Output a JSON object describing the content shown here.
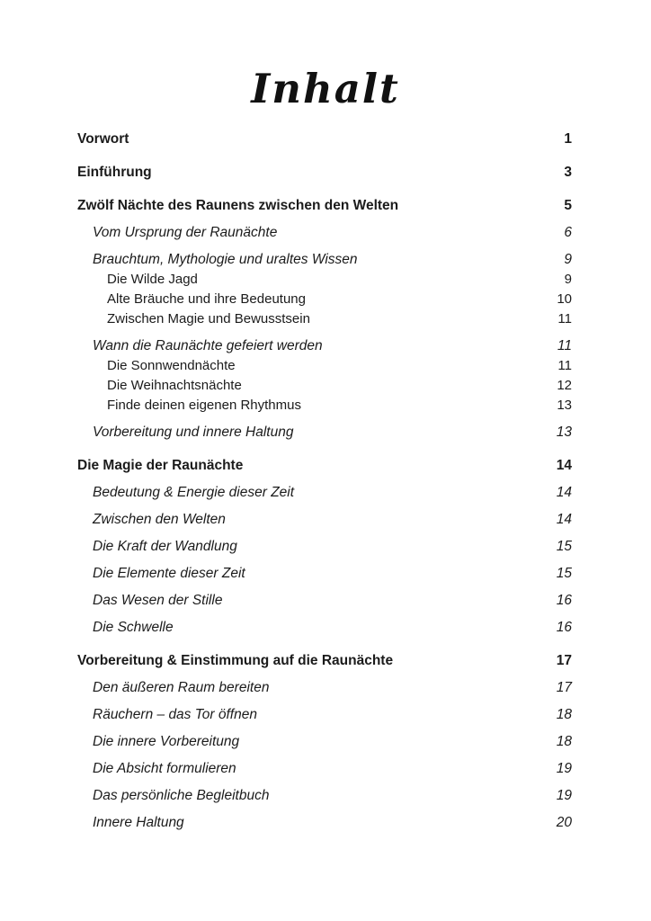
{
  "toc": {
    "title": "Inhalt",
    "entries": [
      {
        "label": "Vorwort",
        "page": "1",
        "level": 1
      },
      {
        "label": "Einführung",
        "page": "3",
        "level": 1
      },
      {
        "label": "Zwölf Nächte des Raunens zwischen den Welten",
        "page": "5",
        "level": 1
      },
      {
        "label": "Vom Ursprung der Raunächte",
        "page": "6",
        "level": 2
      },
      {
        "label": "Brauchtum, Mythologie und uraltes Wissen",
        "page": "9",
        "level": 2
      },
      {
        "label": "Die Wilde Jagd",
        "page": "9",
        "level": 3
      },
      {
        "label": "Alte Bräuche und ihre Bedeutung",
        "page": "10",
        "level": 3
      },
      {
        "label": "Zwischen Magie und Bewusstsein",
        "page": "11",
        "level": 3
      },
      {
        "label": "Wann die Raunächte gefeiert werden",
        "page": "11",
        "level": 2
      },
      {
        "label": "Die Sonnwendnächte",
        "page": "11",
        "level": 3
      },
      {
        "label": "Die Weihnachtsnächte",
        "page": "12",
        "level": 3
      },
      {
        "label": "Finde deinen eigenen Rhythmus",
        "page": "13",
        "level": 3
      },
      {
        "label": "Vorbereitung und innere Haltung",
        "page": "13",
        "level": 2
      },
      {
        "label": "Die Magie der Raunächte",
        "page": "14",
        "level": 1
      },
      {
        "label": "Bedeutung & Energie dieser Zeit",
        "page": "14",
        "level": 2
      },
      {
        "label": "Zwischen den Welten",
        "page": "14",
        "level": 2
      },
      {
        "label": "Die Kraft der Wandlung",
        "page": "15",
        "level": 2
      },
      {
        "label": "Die Elemente dieser Zeit",
        "page": "15",
        "level": 2
      },
      {
        "label": "Das Wesen der Stille",
        "page": "16",
        "level": 2
      },
      {
        "label": "Die Schwelle",
        "page": "16",
        "level": 2
      },
      {
        "label": "Vorbereitung & Einstimmung auf die Raunächte",
        "page": "17",
        "level": 1
      },
      {
        "label": "Den äußeren Raum bereiten",
        "page": "17",
        "level": 2
      },
      {
        "label": "Räuchern – das Tor öffnen",
        "page": "18",
        "level": 2
      },
      {
        "label": "Die innere Vorbereitung",
        "page": "18",
        "level": 2
      },
      {
        "label": "Die Absicht formulieren",
        "page": "19",
        "level": 2
      },
      {
        "label": "Das persönliche Begleitbuch",
        "page": "19",
        "level": 2
      },
      {
        "label": "Innere Haltung",
        "page": "20",
        "level": 2
      }
    ]
  }
}
